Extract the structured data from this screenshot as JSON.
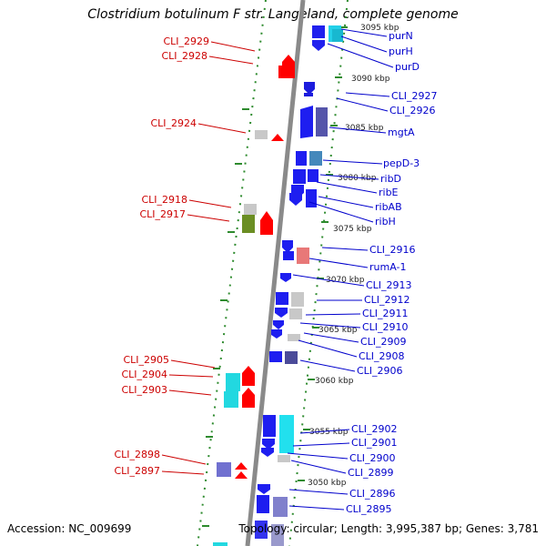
{
  "title": "Clostridium botulinum F str. Langeland, complete genome",
  "footer": {
    "accession": "Accession: NC_009699",
    "topology": "Topology: circular; Length: 3,995,387 bp; Genes: 3,781"
  },
  "colors": {
    "forward_strand": "#0000ff",
    "reverse_strand": "#ff0000",
    "backbone": "#888888",
    "tick": "#2e8b2e",
    "label_right": "#0000cc",
    "label_left": "#cc0000"
  },
  "ruler_ticks": [
    "3055 kbp",
    "3050 kbp",
    "3060 kbp",
    "3065 kbp",
    "3070 kbp",
    "3075 kbp",
    "3080 kbp",
    "3085 kbp",
    "3090 kbp",
    "3095 kbp"
  ],
  "left_labels": [
    "CLI_2929",
    "CLI_2928",
    "CLI_2924",
    "CLI_2918",
    "CLI_2917",
    "CLI_2905",
    "CLI_2904",
    "CLI_2903",
    "CLI_2898",
    "CLI_2897"
  ],
  "right_labels": [
    "purN",
    "purH",
    "purD",
    "CLI_2927",
    "CLI_2926",
    "mgtA",
    "pepD-3",
    "ribD",
    "ribE",
    "ribAB",
    "ribH",
    "CLI_2916",
    "rumA-1",
    "CLI_2913",
    "CLI_2912",
    "CLI_2911",
    "CLI_2910",
    "CLI_2909",
    "CLI_2908",
    "CLI_2906",
    "CLI_2902",
    "CLI_2901",
    "CLI_2900",
    "CLI_2899",
    "CLI_2896",
    "CLI_2895"
  ]
}
